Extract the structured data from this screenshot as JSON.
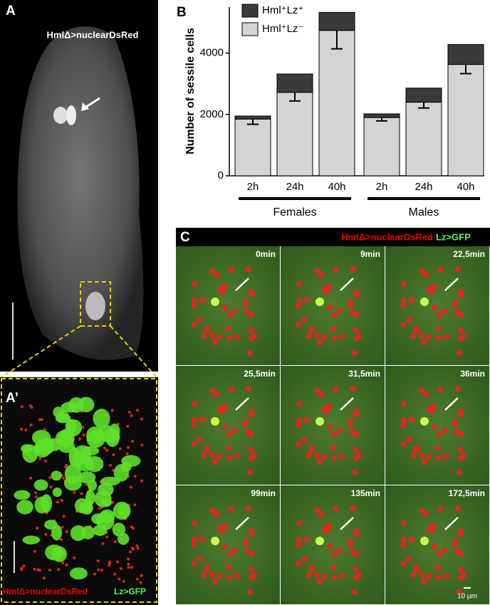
{
  "panels": {
    "a": {
      "letter": "A",
      "label": "HmlΔ>nuclearDsRed"
    },
    "a_prime": {
      "letter": "A’",
      "label_red": "HmlΔ>nuclearDsRed",
      "label_green": "Lz>GFP"
    },
    "b": {
      "letter": "B"
    },
    "c": {
      "letter": "C",
      "label_red": "HmlΔ>nuclearDsRed",
      "label_green": "Lz>GFP",
      "times": [
        "0min",
        "9min",
        "22,5min",
        "25,5min",
        "31,5min",
        "36min",
        "99min",
        "135min",
        "172,5min"
      ],
      "scale_bar": "10 µm"
    }
  },
  "chart_data": {
    "type": "stacked-bar",
    "y_label": "Number of sessile cells",
    "categories": [
      "2h",
      "24h",
      "40h",
      "2h",
      "24h",
      "40h"
    ],
    "group_labels": [
      "Females",
      "Males"
    ],
    "series": [
      {
        "name": "Hml⁺Lz⁺",
        "color": "#3a3a3a",
        "values": [
          100,
          600,
          590,
          120,
          460,
          650
        ]
      },
      {
        "name": "Hml⁺Lz⁻",
        "color": "#d4d4d4",
        "values": [
          1850,
          2720,
          4740,
          1900,
          2400,
          3630
        ],
        "errors": [
          170,
          280,
          600,
          110,
          190,
          300
        ]
      }
    ],
    "ylim": [
      0,
      5500
    ],
    "yticks": [
      0,
      2000,
      4000
    ]
  }
}
